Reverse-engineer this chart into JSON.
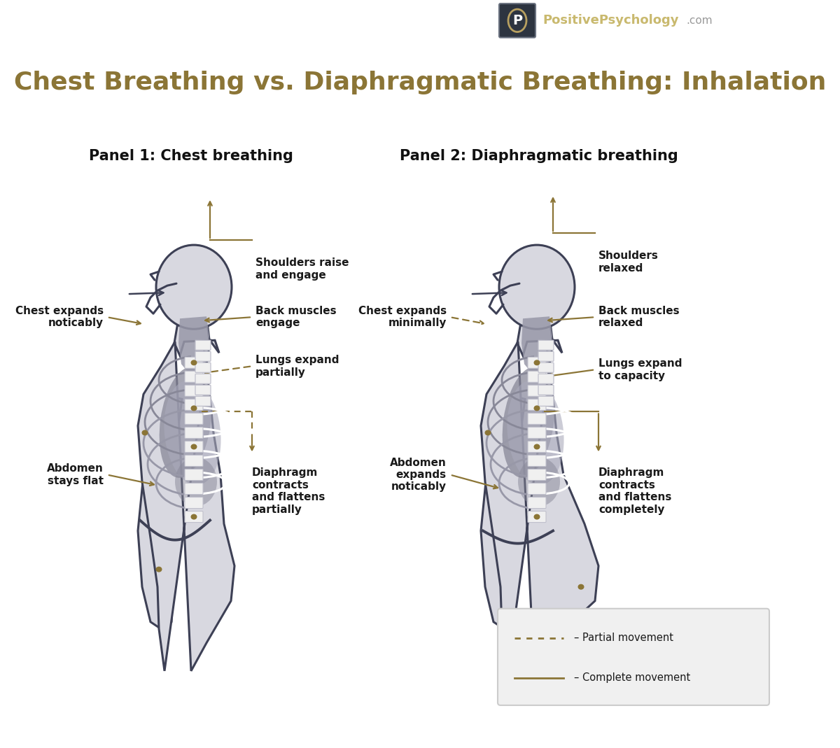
{
  "title": "Chest Breathing vs. Diaphragmatic Breathing: Inhalation",
  "title_color": "#8B7536",
  "title_fontsize": 26,
  "panel1_title": "Panel 1: Chest breathing",
  "panel2_title": "Panel 2: Diaphragmatic breathing",
  "panel_title_fontsize": 15,
  "header_bg_color": "#555e6e",
  "body_bg_color": "#ffffff",
  "body_fill_color": "#d8d8e0",
  "body_outline_color": "#3d4055",
  "neck_fill_color": "#b8b8c8",
  "rib_gray_dark": "#888898",
  "rib_gray_light": "#c0c0cc",
  "spine_white": "#f0f0f0",
  "spine_border": "#c0c0cc",
  "diaphragm_color": "#3d4055",
  "lung_dark": "#888898",
  "lung_light": "#aaaabc",
  "arrow_color": "#8B7536",
  "dot_color": "#8B7536",
  "label_color": "#1a1a1a",
  "label_fontsize": 11,
  "legend_box_fill": "#f0f0f0",
  "legend_box_edge": "#cccccc"
}
